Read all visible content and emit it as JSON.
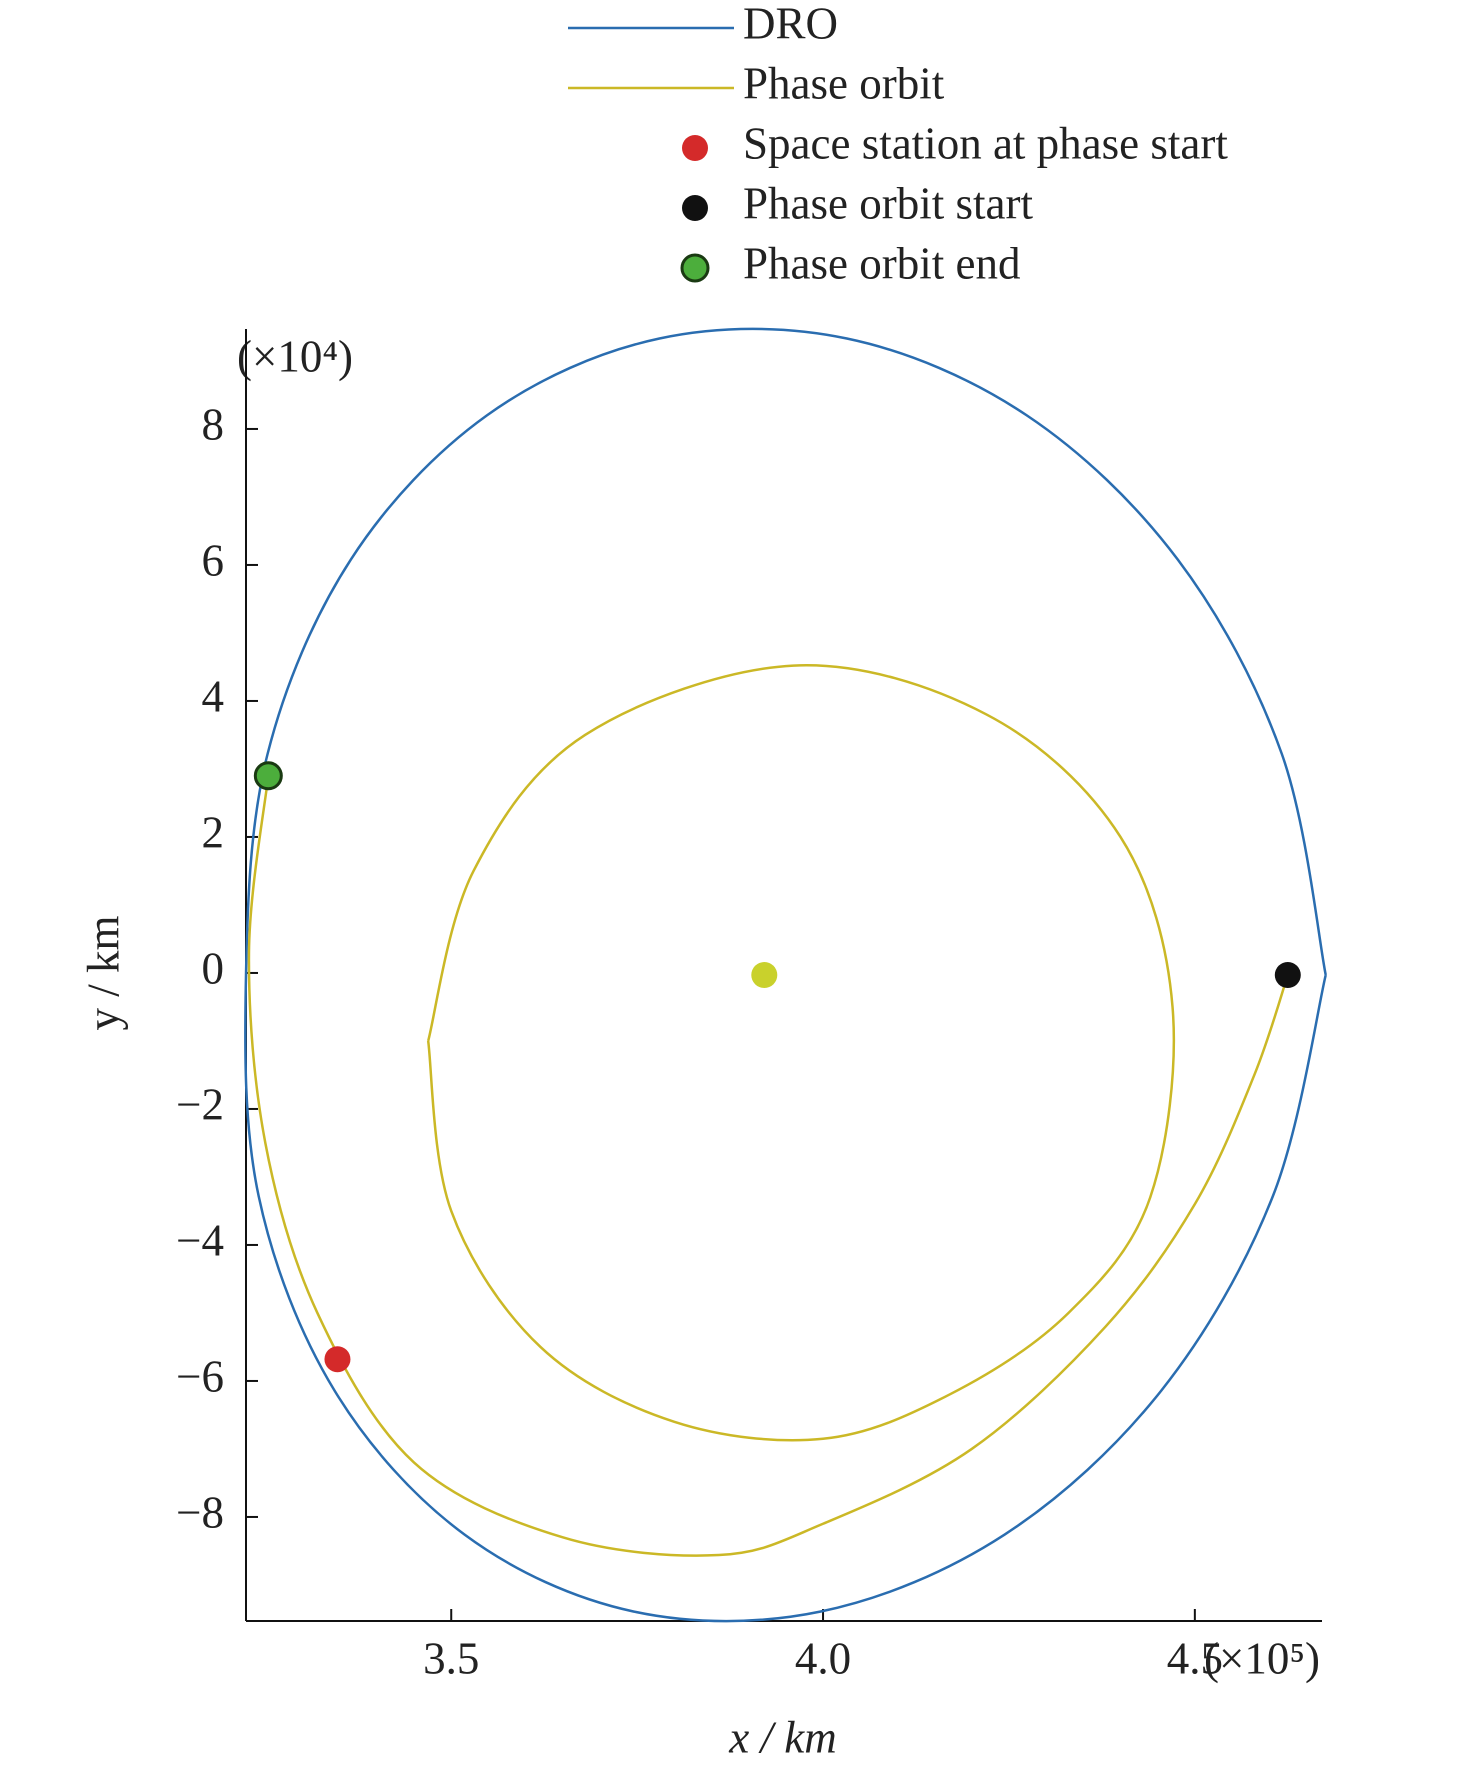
{
  "chart_data": {
    "type": "line",
    "x_label": "x / km",
    "y_label": "y / km",
    "x_multiplier": "(×10⁵)",
    "y_multiplier": "(×10⁴)",
    "xlim": [
      3.224,
      4.671
    ],
    "ylim": [
      -9.53,
      9.47
    ],
    "xticks": [
      3.5,
      {
        "value": 4,
        "label": "4.0"
      },
      4.5
    ],
    "yticks": [
      {
        "value": -8,
        "label": "−8"
      },
      {
        "value": -6,
        "label": "−6"
      },
      {
        "value": -4,
        "label": "−4"
      },
      {
        "value": -2,
        "label": "−2"
      },
      0,
      2,
      4,
      6,
      8
    ],
    "legend": "top",
    "series": [
      {
        "name": "DRO",
        "color": "#2a6db0",
        "x": [
          4.676,
          4.617,
          4.477,
          4.274,
          4.032,
          3.78,
          3.548,
          3.365,
          3.253,
          3.224,
          3.241,
          3.343,
          3.518,
          3.745,
          3.997,
          4.244,
          4.455,
          4.605,
          4.676
        ],
        "y": [
          -0.03,
          3.22,
          6.08,
          8.2,
          9.33,
          9.33,
          8.2,
          6.08,
          3.22,
          -0.03,
          -3.28,
          -6.14,
          -8.26,
          -9.39,
          -9.39,
          -8.26,
          -6.14,
          -3.28,
          -0.03
        ]
      },
      {
        "name": "Phase orbit",
        "color": "#cbb826",
        "x": [
          4.625,
          4.58,
          4.5,
          4.38,
          4.2,
          4.0,
          3.86,
          3.65,
          3.45,
          3.32,
          3.25,
          3.228,
          3.254,
          null,
          3.469,
          3.53,
          3.68,
          3.96,
          4.22,
          4.4,
          4.47,
          4.44,
          4.33,
          4.17,
          4.0,
          3.8,
          3.62,
          3.5,
          3.469
        ],
        "y": [
          -0.03,
          -1.5,
          -3.4,
          -5.2,
          -7.0,
          -8.1,
          -8.56,
          -8.3,
          -7.2,
          -5.0,
          -2.5,
          0.3,
          2.9,
          null,
          -1.0,
          1.5,
          3.5,
          4.52,
          3.8,
          2.0,
          -0.5,
          -3.3,
          -5.0,
          -6.2,
          -6.85,
          -6.6,
          -5.5,
          -3.5,
          -1.0
        ]
      },
      {
        "name": "Space station at phase start",
        "color": "#d42a2a",
        "marker": true,
        "x": [
          3.347
        ],
        "y": [
          -5.68
        ]
      },
      {
        "name": "Phase orbit start",
        "color": "#111111",
        "marker": true,
        "x": [
          4.625
        ],
        "y": [
          -0.03
        ]
      },
      {
        "name": "Phase orbit end",
        "color": "#4cae3c",
        "marker": true,
        "x": [
          3.254
        ],
        "y": [
          2.9
        ]
      },
      {
        "color": "#c9d12c",
        "marker": true,
        "x": [
          3.921
        ],
        "y": [
          -0.03
        ]
      }
    ]
  }
}
